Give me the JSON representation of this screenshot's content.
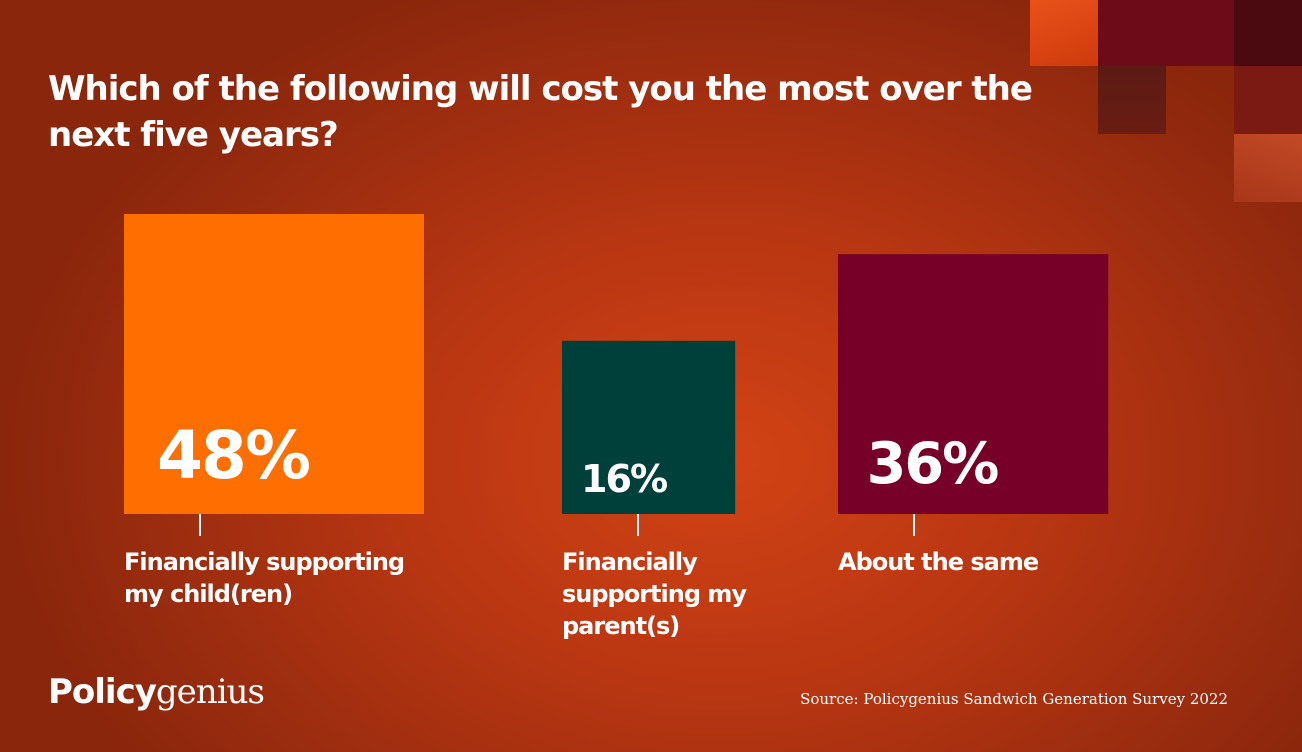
{
  "colors": {
    "background": "#b83612",
    "text": "#ffffff"
  },
  "decor_tiles": [
    {
      "name": "deco-tile-orange",
      "color": "#d9410f"
    },
    {
      "name": "deco-tile-crimson",
      "color": "#6e0b18"
    },
    {
      "name": "deco-tile-dark-crimson",
      "color": "#4a0a10"
    },
    {
      "name": "deco-tile-maroon",
      "color": "#621a12"
    },
    {
      "name": "deco-tile-red",
      "color": "#7a1a12"
    },
    {
      "name": "deco-tile-rust",
      "color": "#b2391a"
    }
  ],
  "chart_data": {
    "type": "bar",
    "title": "Which of the following will cost you the most over the next five years?",
    "categories": [
      "Financially supporting my child(ren)",
      "Financially supporting my parent(s)",
      "About the same"
    ],
    "values": [
      48,
      16,
      36
    ],
    "value_labels": [
      "48%",
      "16%",
      "36%"
    ],
    "colors": [
      "#ff6e00",
      "#00403b",
      "#760027"
    ],
    "unit": "%",
    "grid": false,
    "legend": "none"
  },
  "branding": {
    "logo_part1": "Policy",
    "logo_part2": "genius"
  },
  "source": "Source: Policygenius Sandwich Generation Survey 2022"
}
